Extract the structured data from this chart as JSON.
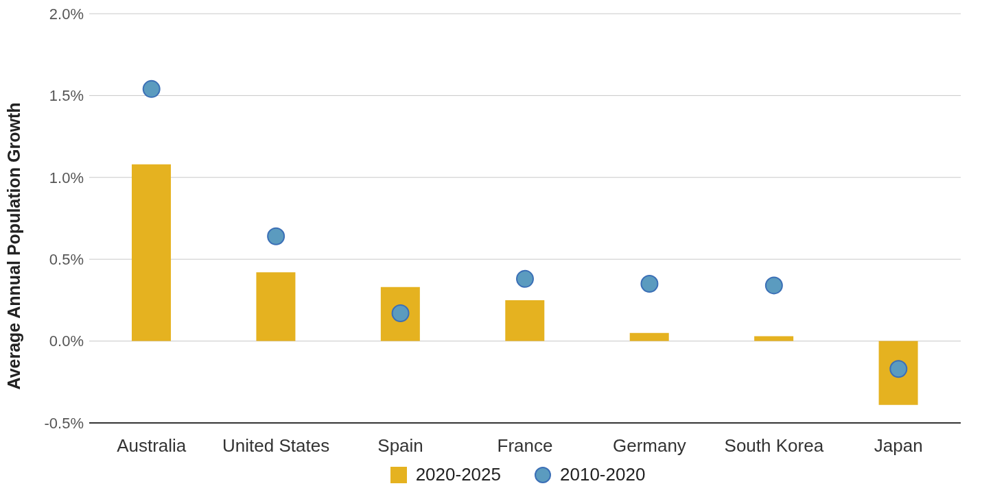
{
  "chart_data": {
    "type": "bar",
    "ylabel": "Average Annual Population Growth",
    "categories": [
      "Australia",
      "United States",
      "Spain",
      "France",
      "Germany",
      "South Korea",
      "Japan"
    ],
    "series": [
      {
        "name": "2020-2025",
        "color": "#e5b220",
        "values": [
          1.08,
          0.42,
          0.33,
          0.25,
          0.05,
          0.03,
          -0.39
        ]
      },
      {
        "name": "2010-2020",
        "type": "scatter",
        "color": "#5b9bbf",
        "values": [
          1.54,
          0.64,
          0.17,
          0.38,
          0.35,
          0.34,
          -0.17
        ]
      }
    ],
    "ylim": [
      -0.5,
      2.0
    ],
    "yticks": [
      {
        "value": -0.5,
        "label": "-0.5%"
      },
      {
        "value": 0,
        "label": "0.0%"
      },
      {
        "value": 0.5,
        "label": "0.5%"
      },
      {
        "value": 1.0,
        "label": "1.0%"
      },
      {
        "value": 1.5,
        "label": "1.5%"
      },
      {
        "value": 2.0,
        "label": "2.0%"
      }
    ],
    "grid": "y",
    "legend": "bottom",
    "marker": "circle"
  }
}
